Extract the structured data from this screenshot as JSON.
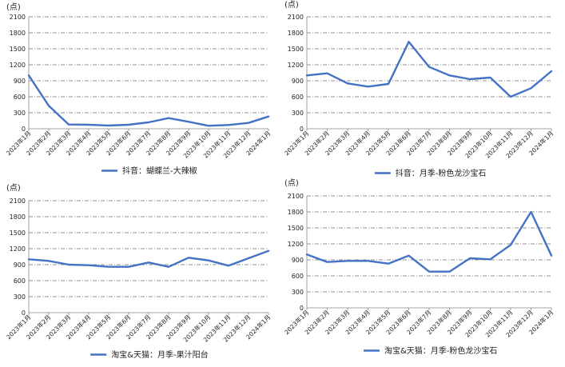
{
  "colors": {
    "series": "#4472C4"
  },
  "chart_data": [
    {
      "type": "line",
      "unit": "(点)",
      "ylim": [
        0,
        2100
      ],
      "yticks": [
        0,
        300,
        600,
        900,
        1200,
        1500,
        1800,
        2100
      ],
      "categories": [
        "2023年1月",
        "2023年2月",
        "2023年3月",
        "2023年4月",
        "2023年5月",
        "2023年6月",
        "2023年7月",
        "2023年8月",
        "2023年9月",
        "2023年10月",
        "2023年11月",
        "2023年12月",
        "2024年1月"
      ],
      "series": [
        {
          "name": "抖音：蝴蝶兰-大辣椒",
          "values": [
            1000,
            430,
            80,
            75,
            60,
            75,
            120,
            200,
            130,
            55,
            70,
            110,
            230
          ]
        }
      ],
      "grid": true,
      "legend": "bottom"
    },
    {
      "type": "line",
      "unit": "(点)",
      "ylim": [
        0,
        2100
      ],
      "yticks": [
        0,
        300,
        600,
        900,
        1200,
        1500,
        1800,
        2100
      ],
      "categories": [
        "2023年1月",
        "2023年2月",
        "2023年3月",
        "2023年4月",
        "2023年5月",
        "2023年6月",
        "2023年7月",
        "2023年8月",
        "2023年9月",
        "2023年10月",
        "2023年11月",
        "2023年12月",
        "2024年1月"
      ],
      "series": [
        {
          "name": "抖音：月季-粉色龙沙宝石",
          "values": [
            1000,
            1040,
            850,
            790,
            840,
            1630,
            1160,
            1000,
            930,
            960,
            600,
            760,
            1080
          ]
        }
      ],
      "grid": true,
      "legend": "bottom"
    },
    {
      "type": "line",
      "unit": "(点)",
      "ylim": [
        0,
        2100
      ],
      "yticks": [
        0,
        300,
        600,
        900,
        1200,
        1500,
        1800,
        2100
      ],
      "categories": [
        "2023年1月",
        "2023年2月",
        "2023年3月",
        "2023年4月",
        "2023年5月",
        "2023年6月",
        "2023年7月",
        "2023年8月",
        "2023年9月",
        "2023年10月",
        "2023年11月",
        "2023年12月",
        "2024年1月"
      ],
      "series": [
        {
          "name": "淘宝&天猫：月季-果汁阳台",
          "values": [
            1000,
            970,
            900,
            890,
            860,
            860,
            940,
            860,
            1030,
            980,
            880,
            1020,
            1160
          ]
        }
      ],
      "grid": true,
      "legend": "bottom"
    },
    {
      "type": "line",
      "unit": "(点)",
      "ylim": [
        0,
        2100
      ],
      "yticks": [
        0,
        300,
        600,
        900,
        1200,
        1500,
        1800,
        2100
      ],
      "categories": [
        "2023年1月",
        "2023年2月",
        "2023年3月",
        "2023年4月",
        "2023年5月",
        "2023年6月",
        "2023年7月",
        "2023年8月",
        "2023年9月",
        "2023年10月",
        "2023年11月",
        "2023年12月",
        "2024年1月"
      ],
      "series": [
        {
          "name": "淘宝&天猫：月季-粉色龙沙宝石",
          "values": [
            1000,
            860,
            880,
            880,
            830,
            980,
            680,
            680,
            930,
            910,
            1180,
            1800,
            980
          ]
        }
      ],
      "grid": true,
      "legend": "bottom"
    }
  ]
}
